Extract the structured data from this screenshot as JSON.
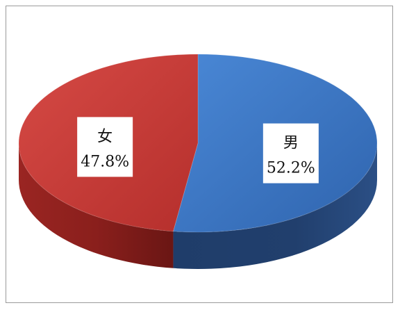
{
  "chart_data": {
    "type": "pie",
    "style": "3d",
    "title": "",
    "legend": "none",
    "slices": [
      {
        "label": "男",
        "value": 52.2,
        "value_label": "52.2%",
        "color": "#3a78c8"
      },
      {
        "label": "女",
        "value": 47.8,
        "value_label": "47.8%",
        "color": "#c43a37"
      }
    ]
  }
}
